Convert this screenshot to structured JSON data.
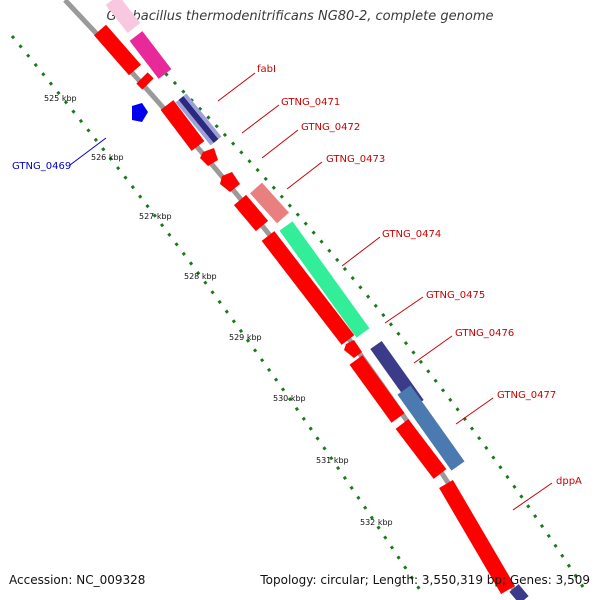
{
  "title": "Geobacillus thermodenitrificans NG80-2, complete genome",
  "accession": "Accession: NC_009328",
  "summary": "Topology: circular; Length: 3,550,319 bp; Genes: 3,509",
  "ticks": [
    "525 kbp",
    "526 kbp",
    "527 kbp",
    "528 kbp",
    "529 kbp",
    "530 kbp",
    "531 kbp",
    "532 kbp"
  ],
  "gene_labels": [
    "fabI",
    "GTNG_0471",
    "GTNG_0472",
    "GTNG_0473",
    "GTNG_0474",
    "GTNG_0475",
    "GTNG_0476",
    "GTNG_0477",
    "dppA",
    "GTNG_0469"
  ],
  "colors": {
    "cds": "#ff0000",
    "minus_strand_gene": "#0000ee",
    "backbone": "#909090",
    "tick": "#006400",
    "label_red": "#cc0000",
    "label_blue": "#0000cc"
  }
}
